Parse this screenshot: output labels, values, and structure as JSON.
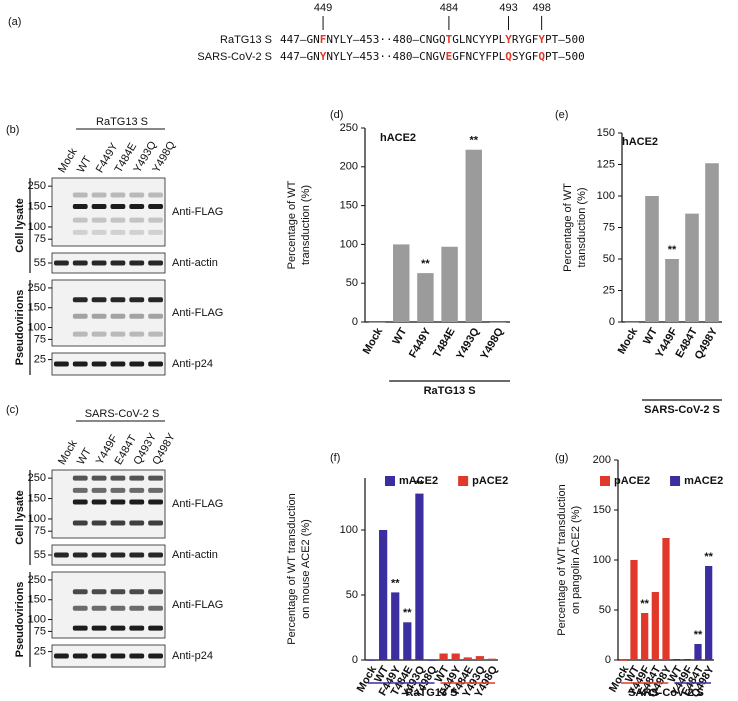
{
  "sequences": {
    "panel": "(a)",
    "positions": [
      449,
      484,
      493,
      498
    ],
    "rows": [
      {
        "label": "RaTG13 S",
        "parts": [
          "447–GN",
          "F",
          "NYLY–453··480–CNGQ",
          "T",
          "GLNCYYPL",
          "Y",
          "RYGF",
          "Y",
          "PT–500"
        ]
      },
      {
        "label": "SARS-CoV-2 S",
        "parts": [
          "447–GN",
          "Y",
          "NYLY–453··480–CNGV",
          "E",
          "GFNCYFPL",
          "Q",
          "SYGF",
          "Q",
          "PT–500"
        ]
      }
    ]
  },
  "blots": [
    {
      "panel": "(b)",
      "header": "RaTG13 S",
      "lanes": [
        "Mock",
        "WT",
        "F449Y",
        "T484E",
        "Y493Q",
        "Y498Q"
      ],
      "sections": [
        {
          "label": "Cell lysate",
          "rows": [
            {
              "antibody": "Anti-FLAG",
              "markers": [
                250,
                150,
                100,
                75
              ]
            },
            {
              "antibody": "Anti-actin",
              "markers": [
                55
              ]
            }
          ]
        },
        {
          "label": "Pseudovirions",
          "rows": [
            {
              "antibody": "Anti-FLAG",
              "markers": [
                250,
                150,
                100,
                75
              ]
            },
            {
              "antibody": "Anti-p24",
              "markers": [
                25
              ]
            }
          ]
        }
      ]
    },
    {
      "panel": "(c)",
      "header": "SARS-CoV-2 S",
      "lanes": [
        "Mock",
        "WT",
        "Y449F",
        "E484T",
        "Q493Y",
        "Q498Y"
      ],
      "sections": [
        {
          "label": "Cell lysate",
          "rows": [
            {
              "antibody": "Anti-FLAG",
              "markers": [
                250,
                150,
                100,
                75
              ]
            },
            {
              "antibody": "Anti-actin",
              "markers": [
                55
              ]
            }
          ]
        },
        {
          "label": "Pseudovirions",
          "rows": [
            {
              "antibody": "Anti-FLAG",
              "markers": [
                250,
                150,
                100,
                75
              ]
            },
            {
              "antibody": "Anti-p24",
              "markers": [
                25
              ]
            }
          ]
        }
      ]
    }
  ],
  "chart_data": [
    {
      "type": "bar",
      "panel": "(d)",
      "title": "hACE2",
      "ylabel": [
        "Percentage of WT",
        "transduction (%)"
      ],
      "categories": [
        "Mock",
        "WT",
        "F449Y",
        "T484E",
        "Y493Q",
        "Y498Q"
      ],
      "values": [
        0,
        100,
        63,
        97,
        222,
        0
      ],
      "significance": [
        null,
        null,
        "**",
        null,
        "**",
        null
      ],
      "color": "#9b9b9b",
      "ylim": [
        0,
        250
      ],
      "yticks": [
        0,
        50,
        100,
        150,
        200,
        250
      ],
      "group_label": "RaTG13 S"
    },
    {
      "type": "bar",
      "panel": "(e)",
      "title": "hACE2",
      "ylabel": [
        "Percentage of WT",
        "transduction (%)"
      ],
      "categories": [
        "Mock",
        "WT",
        "Y449F",
        "E484T",
        "Q498Y"
      ],
      "values": [
        0,
        100,
        50,
        86,
        126
      ],
      "significance": [
        null,
        null,
        "**",
        null,
        null
      ],
      "color": "#9b9b9b",
      "ylim": [
        0,
        150
      ],
      "yticks": [
        0,
        25,
        50,
        75,
        100,
        125,
        150
      ],
      "group_label": "SARS-CoV-2 S"
    },
    {
      "type": "bar",
      "panel": "(f)",
      "ylabel": [
        "Percentage of WT transduction",
        "on mouse ACE2 (%)"
      ],
      "categories": [
        "Mock",
        "WT",
        "F449Y",
        "T484E",
        "Y493Q",
        "Y498Q",
        "WT",
        "F449Y",
        "T484E",
        "Y493Q",
        "Y498Q"
      ],
      "series": [
        {
          "name": "mACE2",
          "color": "#3a2ea0",
          "values": [
            0,
            100,
            52,
            29,
            128,
            0,
            null,
            null,
            null,
            null,
            null
          ],
          "significance": [
            null,
            null,
            "**",
            "**",
            "**",
            null,
            null,
            null,
            null,
            null,
            null
          ]
        },
        {
          "name": "pACE2",
          "color": "#e0392b",
          "values": [
            null,
            null,
            null,
            null,
            null,
            null,
            5,
            5,
            2,
            3,
            1
          ],
          "significance": [
            null,
            null,
            null,
            null,
            null,
            null,
            null,
            null,
            null,
            null,
            null
          ]
        }
      ],
      "ylim": [
        0,
        140
      ],
      "yticks": [
        0,
        50,
        100
      ],
      "group_label": "RaTG13 S"
    },
    {
      "type": "bar",
      "panel": "(g)",
      "ylabel": [
        "Percentage of WT transduction",
        "on pangolin ACE2 (%)"
      ],
      "categories": [
        "Mock",
        "WT",
        "Y449F",
        "E484T",
        "Q498Y",
        "WT",
        "Y449F",
        "E484T",
        "Q498Y"
      ],
      "series": [
        {
          "name": "pACE2",
          "color": "#e0392b",
          "values": [
            0,
            100,
            47,
            68,
            122,
            null,
            null,
            null,
            null
          ],
          "significance": [
            null,
            null,
            "**",
            null,
            null,
            null,
            null,
            null,
            null
          ]
        },
        {
          "name": "mACE2",
          "color": "#3a2ea0",
          "values": [
            null,
            null,
            null,
            null,
            null,
            1,
            1,
            16,
            94
          ],
          "significance": [
            null,
            null,
            null,
            null,
            null,
            null,
            null,
            "**",
            "**"
          ]
        }
      ],
      "ylim": [
        0,
        200
      ],
      "yticks": [
        0,
        50,
        100,
        150,
        200
      ],
      "group_label": "SARS-CoV-2 S"
    }
  ]
}
